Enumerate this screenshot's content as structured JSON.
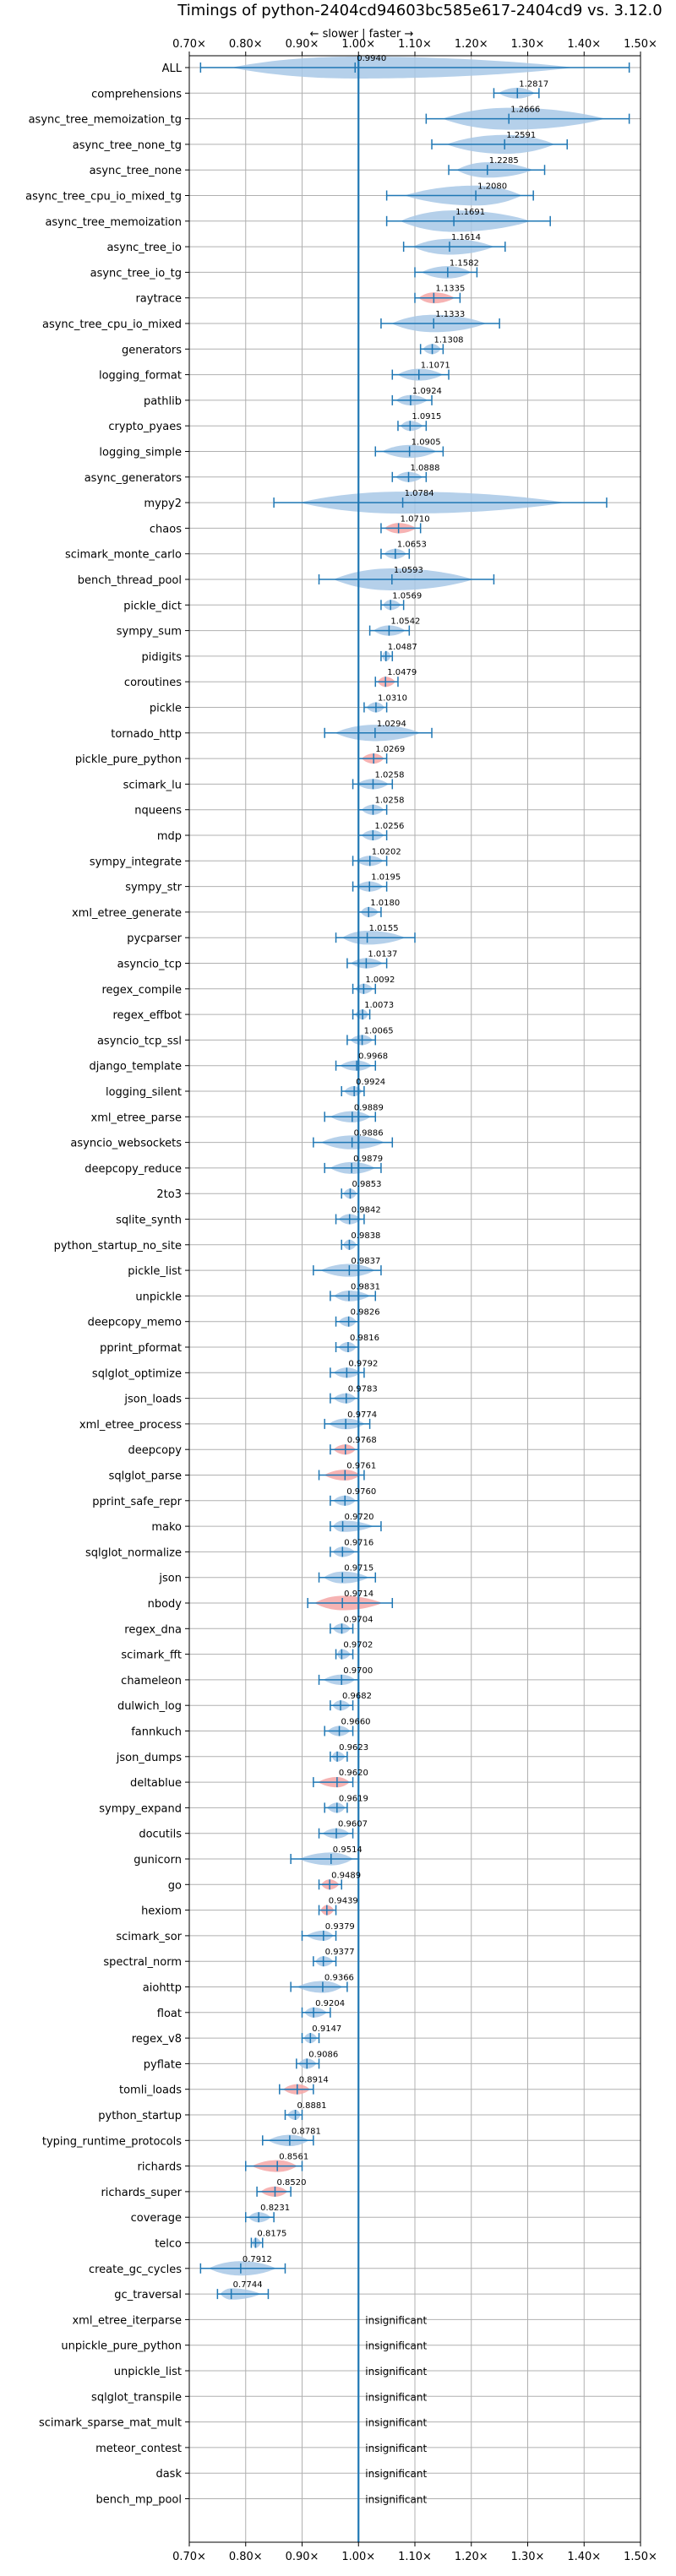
{
  "chart_data": {
    "type": "violin",
    "title": "Timings of python-2404cd94603bc585e617-2404cd9 vs. 3.12.0",
    "annotation": "← slower | faster →",
    "xlim": [
      0.7,
      1.5
    ],
    "xticks": [
      "0.70×",
      "0.80×",
      "0.90×",
      "1.00×",
      "1.10×",
      "1.20×",
      "1.30×",
      "1.40×",
      "1.50×"
    ],
    "xtick_values": [
      0.7,
      0.8,
      0.9,
      1.0,
      1.1,
      1.2,
      1.3,
      1.4,
      1.5
    ],
    "insignificant_label": "insignificant",
    "colors": {
      "faster": "#a8c8e6",
      "slower": "#f4a6a6",
      "line": "#1f77b4",
      "reference": "#1f77b4"
    },
    "benchmarks": [
      {
        "name": "ALL",
        "value": 0.994,
        "label": "0.9940",
        "min": 0.72,
        "max": 1.48,
        "color": "blue"
      },
      {
        "name": "comprehensions",
        "value": 1.2817,
        "label": "1.2817",
        "min": 1.24,
        "max": 1.32,
        "color": "blue"
      },
      {
        "name": "async_tree_memoization_tg",
        "value": 1.2666,
        "label": "1.2666",
        "min": 1.12,
        "max": 1.48,
        "color": "blue"
      },
      {
        "name": "async_tree_none_tg",
        "value": 1.2591,
        "label": "1.2591",
        "min": 1.13,
        "max": 1.37,
        "color": "blue"
      },
      {
        "name": "async_tree_none",
        "value": 1.2285,
        "label": "1.2285",
        "min": 1.16,
        "max": 1.33,
        "color": "blue"
      },
      {
        "name": "async_tree_cpu_io_mixed_tg",
        "value": 1.208,
        "label": "1.2080",
        "min": 1.05,
        "max": 1.31,
        "color": "blue"
      },
      {
        "name": "async_tree_memoization",
        "value": 1.1691,
        "label": "1.1691",
        "min": 1.05,
        "max": 1.34,
        "color": "blue"
      },
      {
        "name": "async_tree_io",
        "value": 1.1614,
        "label": "1.1614",
        "min": 1.08,
        "max": 1.26,
        "color": "blue"
      },
      {
        "name": "async_tree_io_tg",
        "value": 1.1582,
        "label": "1.1582",
        "min": 1.1,
        "max": 1.21,
        "color": "blue"
      },
      {
        "name": "raytrace",
        "value": 1.1335,
        "label": "1.1335",
        "min": 1.1,
        "max": 1.18,
        "color": "red"
      },
      {
        "name": "async_tree_cpu_io_mixed",
        "value": 1.1333,
        "label": "1.1333",
        "min": 1.04,
        "max": 1.25,
        "color": "blue"
      },
      {
        "name": "generators",
        "value": 1.1308,
        "label": "1.1308",
        "min": 1.11,
        "max": 1.15,
        "color": "blue"
      },
      {
        "name": "logging_format",
        "value": 1.1071,
        "label": "1.1071",
        "min": 1.06,
        "max": 1.16,
        "color": "blue"
      },
      {
        "name": "pathlib",
        "value": 1.0924,
        "label": "1.0924",
        "min": 1.06,
        "max": 1.13,
        "color": "blue"
      },
      {
        "name": "crypto_pyaes",
        "value": 1.0915,
        "label": "1.0915",
        "min": 1.07,
        "max": 1.12,
        "color": "blue"
      },
      {
        "name": "logging_simple",
        "value": 1.0905,
        "label": "1.0905",
        "min": 1.03,
        "max": 1.15,
        "color": "blue"
      },
      {
        "name": "async_generators",
        "value": 1.0888,
        "label": "1.0888",
        "min": 1.06,
        "max": 1.12,
        "color": "blue"
      },
      {
        "name": "mypy2",
        "value": 1.0784,
        "label": "1.0784",
        "min": 0.85,
        "max": 1.44,
        "color": "blue"
      },
      {
        "name": "chaos",
        "value": 1.071,
        "label": "1.0710",
        "min": 1.04,
        "max": 1.11,
        "color": "red"
      },
      {
        "name": "scimark_monte_carlo",
        "value": 1.0653,
        "label": "1.0653",
        "min": 1.04,
        "max": 1.09,
        "color": "blue"
      },
      {
        "name": "bench_thread_pool",
        "value": 1.0593,
        "label": "1.0593",
        "min": 0.93,
        "max": 1.24,
        "color": "blue"
      },
      {
        "name": "pickle_dict",
        "value": 1.0569,
        "label": "1.0569",
        "min": 1.04,
        "max": 1.08,
        "color": "blue"
      },
      {
        "name": "sympy_sum",
        "value": 1.0542,
        "label": "1.0542",
        "min": 1.02,
        "max": 1.09,
        "color": "blue"
      },
      {
        "name": "pidigits",
        "value": 1.0487,
        "label": "1.0487",
        "min": 1.04,
        "max": 1.06,
        "color": "blue"
      },
      {
        "name": "coroutines",
        "value": 1.0479,
        "label": "1.0479",
        "min": 1.03,
        "max": 1.07,
        "color": "red"
      },
      {
        "name": "pickle",
        "value": 1.031,
        "label": "1.0310",
        "min": 1.01,
        "max": 1.05,
        "color": "blue"
      },
      {
        "name": "tornado_http",
        "value": 1.0294,
        "label": "1.0294",
        "min": 0.94,
        "max": 1.13,
        "color": "blue"
      },
      {
        "name": "pickle_pure_python",
        "value": 1.0269,
        "label": "1.0269",
        "min": 1.0,
        "max": 1.05,
        "color": "red"
      },
      {
        "name": "scimark_lu",
        "value": 1.0258,
        "label": "1.0258",
        "min": 0.99,
        "max": 1.06,
        "color": "blue"
      },
      {
        "name": "nqueens",
        "value": 1.0258,
        "label": "1.0258",
        "min": 1.0,
        "max": 1.05,
        "color": "blue"
      },
      {
        "name": "mdp",
        "value": 1.0256,
        "label": "1.0256",
        "min": 1.0,
        "max": 1.05,
        "color": "blue"
      },
      {
        "name": "sympy_integrate",
        "value": 1.0202,
        "label": "1.0202",
        "min": 0.99,
        "max": 1.05,
        "color": "blue"
      },
      {
        "name": "sympy_str",
        "value": 1.0195,
        "label": "1.0195",
        "min": 0.99,
        "max": 1.05,
        "color": "blue"
      },
      {
        "name": "xml_etree_generate",
        "value": 1.018,
        "label": "1.0180",
        "min": 1.0,
        "max": 1.04,
        "color": "blue"
      },
      {
        "name": "pycparser",
        "value": 1.0155,
        "label": "1.0155",
        "min": 0.96,
        "max": 1.1,
        "color": "blue"
      },
      {
        "name": "asyncio_tcp",
        "value": 1.0137,
        "label": "1.0137",
        "min": 0.98,
        "max": 1.05,
        "color": "blue"
      },
      {
        "name": "regex_compile",
        "value": 1.0092,
        "label": "1.0092",
        "min": 0.99,
        "max": 1.03,
        "color": "blue"
      },
      {
        "name": "regex_effbot",
        "value": 1.0073,
        "label": "1.0073",
        "min": 0.99,
        "max": 1.02,
        "color": "blue"
      },
      {
        "name": "asyncio_tcp_ssl",
        "value": 1.0065,
        "label": "1.0065",
        "min": 0.98,
        "max": 1.03,
        "color": "blue"
      },
      {
        "name": "django_template",
        "value": 0.9968,
        "label": "0.9968",
        "min": 0.96,
        "max": 1.03,
        "color": "blue"
      },
      {
        "name": "logging_silent",
        "value": 0.9924,
        "label": "0.9924",
        "min": 0.97,
        "max": 1.01,
        "color": "blue"
      },
      {
        "name": "xml_etree_parse",
        "value": 0.9889,
        "label": "0.9889",
        "min": 0.94,
        "max": 1.03,
        "color": "blue"
      },
      {
        "name": "asyncio_websockets",
        "value": 0.9886,
        "label": "0.9886",
        "min": 0.92,
        "max": 1.06,
        "color": "blue"
      },
      {
        "name": "deepcopy_reduce",
        "value": 0.9879,
        "label": "0.9879",
        "min": 0.94,
        "max": 1.04,
        "color": "blue"
      },
      {
        "name": "2to3",
        "value": 0.9853,
        "label": "0.9853",
        "min": 0.97,
        "max": 1.0,
        "color": "blue"
      },
      {
        "name": "sqlite_synth",
        "value": 0.9842,
        "label": "0.9842",
        "min": 0.96,
        "max": 1.01,
        "color": "blue"
      },
      {
        "name": "python_startup_no_site",
        "value": 0.9838,
        "label": "0.9838",
        "min": 0.97,
        "max": 1.0,
        "color": "blue"
      },
      {
        "name": "pickle_list",
        "value": 0.9837,
        "label": "0.9837",
        "min": 0.92,
        "max": 1.04,
        "color": "blue"
      },
      {
        "name": "unpickle",
        "value": 0.9831,
        "label": "0.9831",
        "min": 0.95,
        "max": 1.03,
        "color": "blue"
      },
      {
        "name": "deepcopy_memo",
        "value": 0.9826,
        "label": "0.9826",
        "min": 0.96,
        "max": 1.0,
        "color": "blue"
      },
      {
        "name": "pprint_pformat",
        "value": 0.9816,
        "label": "0.9816",
        "min": 0.96,
        "max": 1.0,
        "color": "blue"
      },
      {
        "name": "sqlglot_optimize",
        "value": 0.9792,
        "label": "0.9792",
        "min": 0.95,
        "max": 1.01,
        "color": "blue"
      },
      {
        "name": "json_loads",
        "value": 0.9783,
        "label": "0.9783",
        "min": 0.95,
        "max": 1.0,
        "color": "blue"
      },
      {
        "name": "xml_etree_process",
        "value": 0.9774,
        "label": "0.9774",
        "min": 0.94,
        "max": 1.02,
        "color": "blue"
      },
      {
        "name": "deepcopy",
        "value": 0.9768,
        "label": "0.9768",
        "min": 0.95,
        "max": 1.0,
        "color": "red"
      },
      {
        "name": "sqlglot_parse",
        "value": 0.9761,
        "label": "0.9761",
        "min": 0.93,
        "max": 1.01,
        "color": "red"
      },
      {
        "name": "pprint_safe_repr",
        "value": 0.976,
        "label": "0.9760",
        "min": 0.95,
        "max": 1.0,
        "color": "blue"
      },
      {
        "name": "mako",
        "value": 0.972,
        "label": "0.9720",
        "min": 0.95,
        "max": 1.04,
        "color": "blue"
      },
      {
        "name": "sqlglot_normalize",
        "value": 0.9716,
        "label": "0.9716",
        "min": 0.95,
        "max": 1.0,
        "color": "blue"
      },
      {
        "name": "json",
        "value": 0.9715,
        "label": "0.9715",
        "min": 0.93,
        "max": 1.03,
        "color": "blue"
      },
      {
        "name": "nbody",
        "value": 0.9714,
        "label": "0.9714",
        "min": 0.91,
        "max": 1.06,
        "color": "red"
      },
      {
        "name": "regex_dna",
        "value": 0.9704,
        "label": "0.9704",
        "min": 0.95,
        "max": 0.99,
        "color": "blue"
      },
      {
        "name": "scimark_fft",
        "value": 0.9702,
        "label": "0.9702",
        "min": 0.96,
        "max": 0.99,
        "color": "blue"
      },
      {
        "name": "chameleon",
        "value": 0.97,
        "label": "0.9700",
        "min": 0.93,
        "max": 1.0,
        "color": "blue"
      },
      {
        "name": "dulwich_log",
        "value": 0.9682,
        "label": "0.9682",
        "min": 0.95,
        "max": 0.99,
        "color": "blue"
      },
      {
        "name": "fannkuch",
        "value": 0.966,
        "label": "0.9660",
        "min": 0.94,
        "max": 0.99,
        "color": "blue"
      },
      {
        "name": "json_dumps",
        "value": 0.9623,
        "label": "0.9623",
        "min": 0.95,
        "max": 0.98,
        "color": "blue"
      },
      {
        "name": "deltablue",
        "value": 0.962,
        "label": "0.9620",
        "min": 0.92,
        "max": 0.99,
        "color": "red"
      },
      {
        "name": "sympy_expand",
        "value": 0.9619,
        "label": "0.9619",
        "min": 0.94,
        "max": 0.98,
        "color": "blue"
      },
      {
        "name": "docutils",
        "value": 0.9607,
        "label": "0.9607",
        "min": 0.93,
        "max": 0.99,
        "color": "blue"
      },
      {
        "name": "gunicorn",
        "value": 0.9514,
        "label": "0.9514",
        "min": 0.88,
        "max": 1.0,
        "color": "blue"
      },
      {
        "name": "go",
        "value": 0.9489,
        "label": "0.9489",
        "min": 0.93,
        "max": 0.97,
        "color": "red"
      },
      {
        "name": "hexiom",
        "value": 0.9439,
        "label": "0.9439",
        "min": 0.93,
        "max": 0.96,
        "color": "red"
      },
      {
        "name": "scimark_sor",
        "value": 0.9379,
        "label": "0.9379",
        "min": 0.9,
        "max": 0.96,
        "color": "blue"
      },
      {
        "name": "spectral_norm",
        "value": 0.9377,
        "label": "0.9377",
        "min": 0.92,
        "max": 0.96,
        "color": "blue"
      },
      {
        "name": "aiohttp",
        "value": 0.9366,
        "label": "0.9366",
        "min": 0.88,
        "max": 0.98,
        "color": "blue"
      },
      {
        "name": "float",
        "value": 0.9204,
        "label": "0.9204",
        "min": 0.9,
        "max": 0.95,
        "color": "blue"
      },
      {
        "name": "regex_v8",
        "value": 0.9147,
        "label": "0.9147",
        "min": 0.9,
        "max": 0.93,
        "color": "blue"
      },
      {
        "name": "pyflate",
        "value": 0.9086,
        "label": "0.9086",
        "min": 0.89,
        "max": 0.93,
        "color": "blue"
      },
      {
        "name": "tomli_loads",
        "value": 0.8914,
        "label": "0.8914",
        "min": 0.86,
        "max": 0.92,
        "color": "red"
      },
      {
        "name": "python_startup",
        "value": 0.8881,
        "label": "0.8881",
        "min": 0.87,
        "max": 0.9,
        "color": "blue"
      },
      {
        "name": "typing_runtime_protocols",
        "value": 0.8781,
        "label": "0.8781",
        "min": 0.83,
        "max": 0.92,
        "color": "blue"
      },
      {
        "name": "richards",
        "value": 0.8561,
        "label": "0.8561",
        "min": 0.8,
        "max": 0.9,
        "color": "red"
      },
      {
        "name": "richards_super",
        "value": 0.852,
        "label": "0.8520",
        "min": 0.82,
        "max": 0.88,
        "color": "red"
      },
      {
        "name": "coverage",
        "value": 0.8231,
        "label": "0.8231",
        "min": 0.8,
        "max": 0.85,
        "color": "blue"
      },
      {
        "name": "telco",
        "value": 0.8175,
        "label": "0.8175",
        "min": 0.81,
        "max": 0.83,
        "color": "blue"
      },
      {
        "name": "create_gc_cycles",
        "value": 0.7912,
        "label": "0.7912",
        "min": 0.72,
        "max": 0.87,
        "color": "blue"
      },
      {
        "name": "gc_traversal",
        "value": 0.7744,
        "label": "0.7744",
        "min": 0.75,
        "max": 0.84,
        "color": "blue"
      },
      {
        "name": "xml_etree_iterparse",
        "insignificant": true
      },
      {
        "name": "unpickle_pure_python",
        "insignificant": true
      },
      {
        "name": "unpickle_list",
        "insignificant": true
      },
      {
        "name": "sqlglot_transpile",
        "insignificant": true
      },
      {
        "name": "scimark_sparse_mat_mult",
        "insignificant": true
      },
      {
        "name": "meteor_contest",
        "insignificant": true
      },
      {
        "name": "dask",
        "insignificant": true
      },
      {
        "name": "bench_mp_pool",
        "insignificant": true
      }
    ]
  }
}
